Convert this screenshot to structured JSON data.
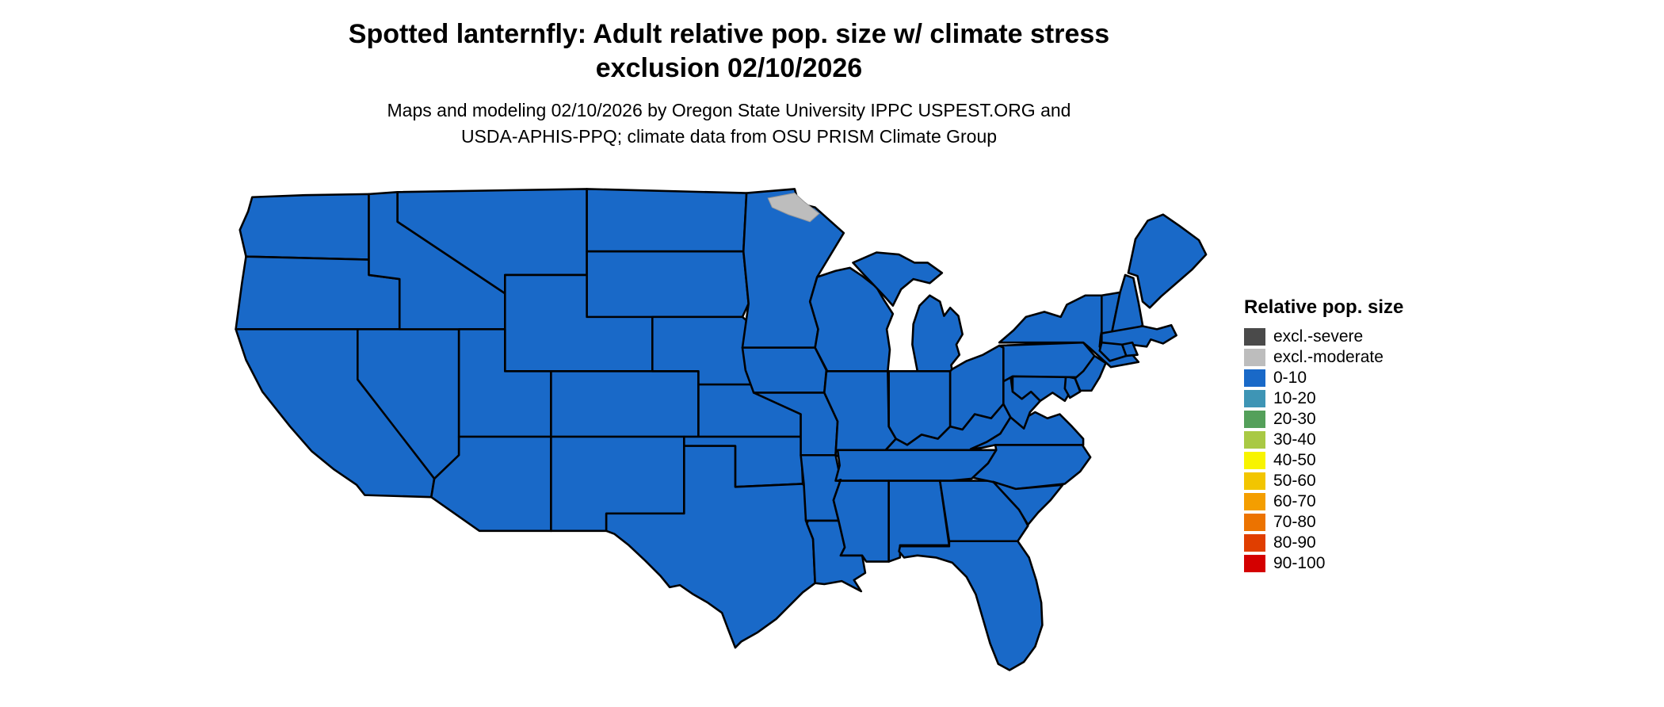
{
  "title": {
    "line1": "Spotted lanternfly: Adult relative pop. size w/ climate stress",
    "line2": "exclusion 02/10/2026"
  },
  "subtitle": {
    "line1": "Maps and modeling 02/10/2026 by Oregon State University IPPC USPEST.ORG and",
    "line2": "USDA-APHIS-PPQ; climate data from OSU PRISM Climate Group"
  },
  "legend": {
    "title": "Relative pop. size",
    "items": [
      {
        "label": "excl.-severe",
        "color": "#4A4A4A"
      },
      {
        "label": "excl.-moderate",
        "color": "#BDBDBD"
      },
      {
        "label": "0-10",
        "color": "#1969C8"
      },
      {
        "label": "10-20",
        "color": "#3E95B5"
      },
      {
        "label": "20-30",
        "color": "#54A05A"
      },
      {
        "label": "30-40",
        "color": "#A9C944"
      },
      {
        "label": "40-50",
        "color": "#F8F400"
      },
      {
        "label": "50-60",
        "color": "#F2C500"
      },
      {
        "label": "60-70",
        "color": "#F49E00"
      },
      {
        "label": "70-80",
        "color": "#EC7300"
      },
      {
        "label": "80-90",
        "color": "#E03E00"
      },
      {
        "label": "90-100",
        "color": "#D40000"
      }
    ]
  },
  "map": {
    "region": "Contiguous United States",
    "fill_category_default": "0-10",
    "colors": {
      "state_fill": "#1969C8",
      "state_border": "#000000",
      "exclusion_moderate_fill": "#BDBDBD",
      "background": "#FFFFFF"
    },
    "exclusion_area": {
      "location": "northeastern Minnesota",
      "category": "excl.-moderate"
    }
  }
}
